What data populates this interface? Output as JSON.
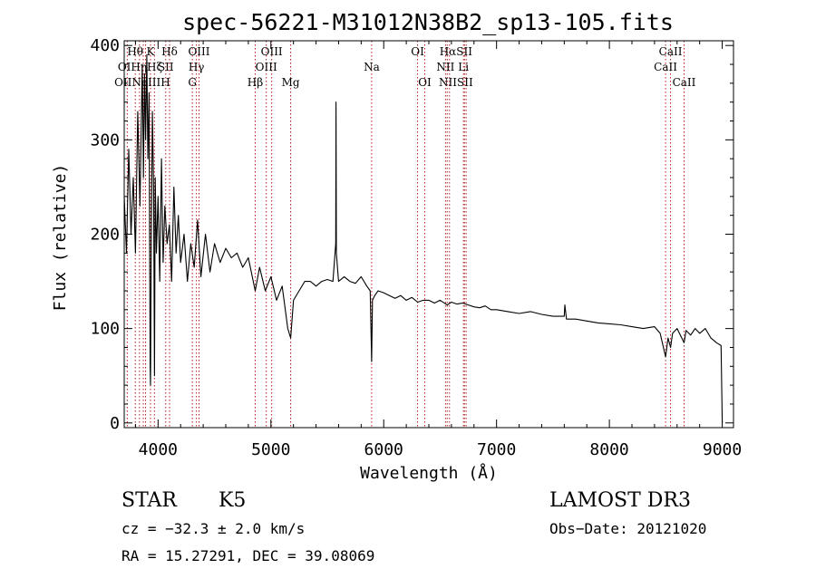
{
  "chart_data": {
    "type": "line",
    "title": "spec-56221-M31012N38B2_sp13-105.fits",
    "xlabel": "Wavelength (Å)",
    "ylabel": "Flux (relative)",
    "xlim": [
      3700,
      9100
    ],
    "ylim": [
      -5,
      405
    ],
    "xticks": [
      4000,
      5000,
      6000,
      7000,
      8000,
      9000
    ],
    "yticks": [
      0,
      100,
      200,
      300,
      400
    ],
    "line_color": "#000000",
    "marker_color": "#b02020",
    "series": [
      {
        "name": "flux",
        "x": [
          3700,
          3720,
          3740,
          3760,
          3780,
          3800,
          3820,
          3840,
          3860,
          3870,
          3880,
          3890,
          3900,
          3910,
          3920,
          3930,
          3933,
          3940,
          3950,
          3960,
          3968,
          3975,
          3985,
          4000,
          4015,
          4030,
          4045,
          4060,
          4080,
          4100,
          4120,
          4140,
          4160,
          4180,
          4200,
          4230,
          4260,
          4290,
          4320,
          4350,
          4380,
          4420,
          4460,
          4500,
          4550,
          4600,
          4650,
          4700,
          4750,
          4800,
          4861,
          4900,
          4950,
          5000,
          5050,
          5100,
          5150,
          5175,
          5200,
          5250,
          5300,
          5350,
          5400,
          5450,
          5500,
          5550,
          5575,
          5577,
          5580,
          5600,
          5650,
          5700,
          5750,
          5800,
          5850,
          5880,
          5893,
          5900,
          5920,
          5950,
          6000,
          6050,
          6100,
          6150,
          6200,
          6250,
          6300,
          6350,
          6400,
          6450,
          6500,
          6563,
          6600,
          6650,
          6700,
          6750,
          6800,
          6850,
          6900,
          6950,
          7000,
          7100,
          7200,
          7300,
          7400,
          7500,
          7600,
          7605,
          7620,
          7700,
          7800,
          7900,
          8000,
          8100,
          8200,
          8300,
          8400,
          8450,
          8498,
          8520,
          8542,
          8560,
          8600,
          8662,
          8680,
          8720,
          8760,
          8800,
          8850,
          8900,
          8950,
          8990,
          9000
        ],
        "y": [
          240,
          180,
          290,
          200,
          260,
          180,
          330,
          230,
          380,
          260,
          370,
          300,
          390,
          280,
          350,
          60,
          40,
          200,
          330,
          250,
          50,
          260,
          180,
          240,
          150,
          280,
          170,
          230,
          190,
          210,
          150,
          250,
          180,
          220,
          170,
          200,
          150,
          190,
          165,
          215,
          155,
          200,
          160,
          190,
          170,
          185,
          175,
          180,
          165,
          175,
          140,
          165,
          140,
          155,
          130,
          145,
          100,
          90,
          130,
          140,
          150,
          150,
          145,
          150,
          152,
          150,
          190,
          340,
          180,
          150,
          155,
          150,
          148,
          155,
          145,
          140,
          65,
          130,
          135,
          140,
          138,
          135,
          132,
          135,
          130,
          133,
          128,
          130,
          130,
          127,
          130,
          125,
          128,
          126,
          127,
          125,
          123,
          122,
          124,
          120,
          120,
          118,
          116,
          118,
          115,
          113,
          113,
          125,
          110,
          110,
          108,
          106,
          105,
          104,
          102,
          100,
          102,
          95,
          70,
          90,
          80,
          95,
          100,
          85,
          98,
          93,
          100,
          95,
          100,
          90,
          85,
          82,
          0
        ]
      }
    ],
    "lines": [
      {
        "wavelength": 3727,
        "label": "OII"
      },
      {
        "wavelength": 3798,
        "label": "Hθ"
      },
      {
        "wavelength": 3835,
        "label": "Hη"
      },
      {
        "wavelength": 3869,
        "label": "NeIII"
      },
      {
        "wavelength": 3889,
        "label": "Hζ"
      },
      {
        "wavelength": 3933,
        "label": "K"
      },
      {
        "wavelength": 3968,
        "label": "H"
      },
      {
        "wavelength": 4068,
        "label": "SII"
      },
      {
        "wavelength": 4102,
        "label": "Hδ"
      },
      {
        "wavelength": 4304,
        "label": "G"
      },
      {
        "wavelength": 4340,
        "label": "Hγ"
      },
      {
        "wavelength": 4363,
        "label": "OIII"
      },
      {
        "wavelength": 4861,
        "label": "Hβ"
      },
      {
        "wavelength": 4959,
        "label": "OIII"
      },
      {
        "wavelength": 5007,
        "label": "OIII"
      },
      {
        "wavelength": 5175,
        "label": "Mg"
      },
      {
        "wavelength": 5893,
        "label": "Na"
      },
      {
        "wavelength": 6300,
        "label": "OI"
      },
      {
        "wavelength": 6364,
        "label": "OI"
      },
      {
        "wavelength": 6548,
        "label": "NII"
      },
      {
        "wavelength": 6563,
        "label": "Hα"
      },
      {
        "wavelength": 6583,
        "label": "NII"
      },
      {
        "wavelength": 6707,
        "label": "Li"
      },
      {
        "wavelength": 6716,
        "label": "SII"
      },
      {
        "wavelength": 6731,
        "label": "SII"
      },
      {
        "wavelength": 8498,
        "label": "CaII"
      },
      {
        "wavelength": 8542,
        "label": "CaII"
      },
      {
        "wavelength": 8662,
        "label": "CaII"
      }
    ],
    "line_label_texts": [
      {
        "text": "Hθ",
        "wavelength": 3798,
        "row": 0
      },
      {
        "text": "K",
        "wavelength": 3933,
        "row": 0
      },
      {
        "text": "Hδ",
        "wavelength": 4102,
        "row": 0
      },
      {
        "text": "OIII",
        "wavelength": 4363,
        "row": 0
      },
      {
        "text": "OIII",
        "wavelength": 5007,
        "row": 0
      },
      {
        "text": "OI",
        "wavelength": 6300,
        "row": 0
      },
      {
        "text": "HαSII",
        "wavelength": 6640,
        "row": 0
      },
      {
        "text": "CaII",
        "wavelength": 8542,
        "row": 0
      },
      {
        "text": "OIHηHζ",
        "wavelength": 3840,
        "row": 1
      },
      {
        "text": "SII",
        "wavelength": 4068,
        "row": 1
      },
      {
        "text": "Hγ",
        "wavelength": 4340,
        "row": 1
      },
      {
        "text": "OIII",
        "wavelength": 4959,
        "row": 1
      },
      {
        "text": "NII",
        "wavelength": 6548,
        "row": 1
      },
      {
        "text": "Li",
        "wavelength": 6707,
        "row": 1
      },
      {
        "text": "CaII",
        "wavelength": 8498,
        "row": 1
      },
      {
        "text": "OIINeIIIH",
        "wavelength": 3860,
        "row": 2
      },
      {
        "text": "G",
        "wavelength": 4304,
        "row": 2
      },
      {
        "text": "Hβ",
        "wavelength": 4861,
        "row": 2
      },
      {
        "text": "Mg",
        "wavelength": 5175,
        "row": 2
      },
      {
        "text": "Na",
        "wavelength": 5893,
        "row": 1
      },
      {
        "text": "OI",
        "wavelength": 6364,
        "row": 2
      },
      {
        "text": "NIISII",
        "wavelength": 6640,
        "row": 2
      },
      {
        "text": "CaII",
        "wavelength": 8662,
        "row": 2
      }
    ]
  },
  "info": {
    "class_label": "STAR",
    "subclass_label": "K5",
    "survey_label": "LAMOST DR3",
    "cz_text": "cz = −32.3 ± 2.0 km/s",
    "obs_date_text": "Obs−Date: 20121020",
    "radec_text": "RA =  15.27291, DEC =  39.08069"
  }
}
